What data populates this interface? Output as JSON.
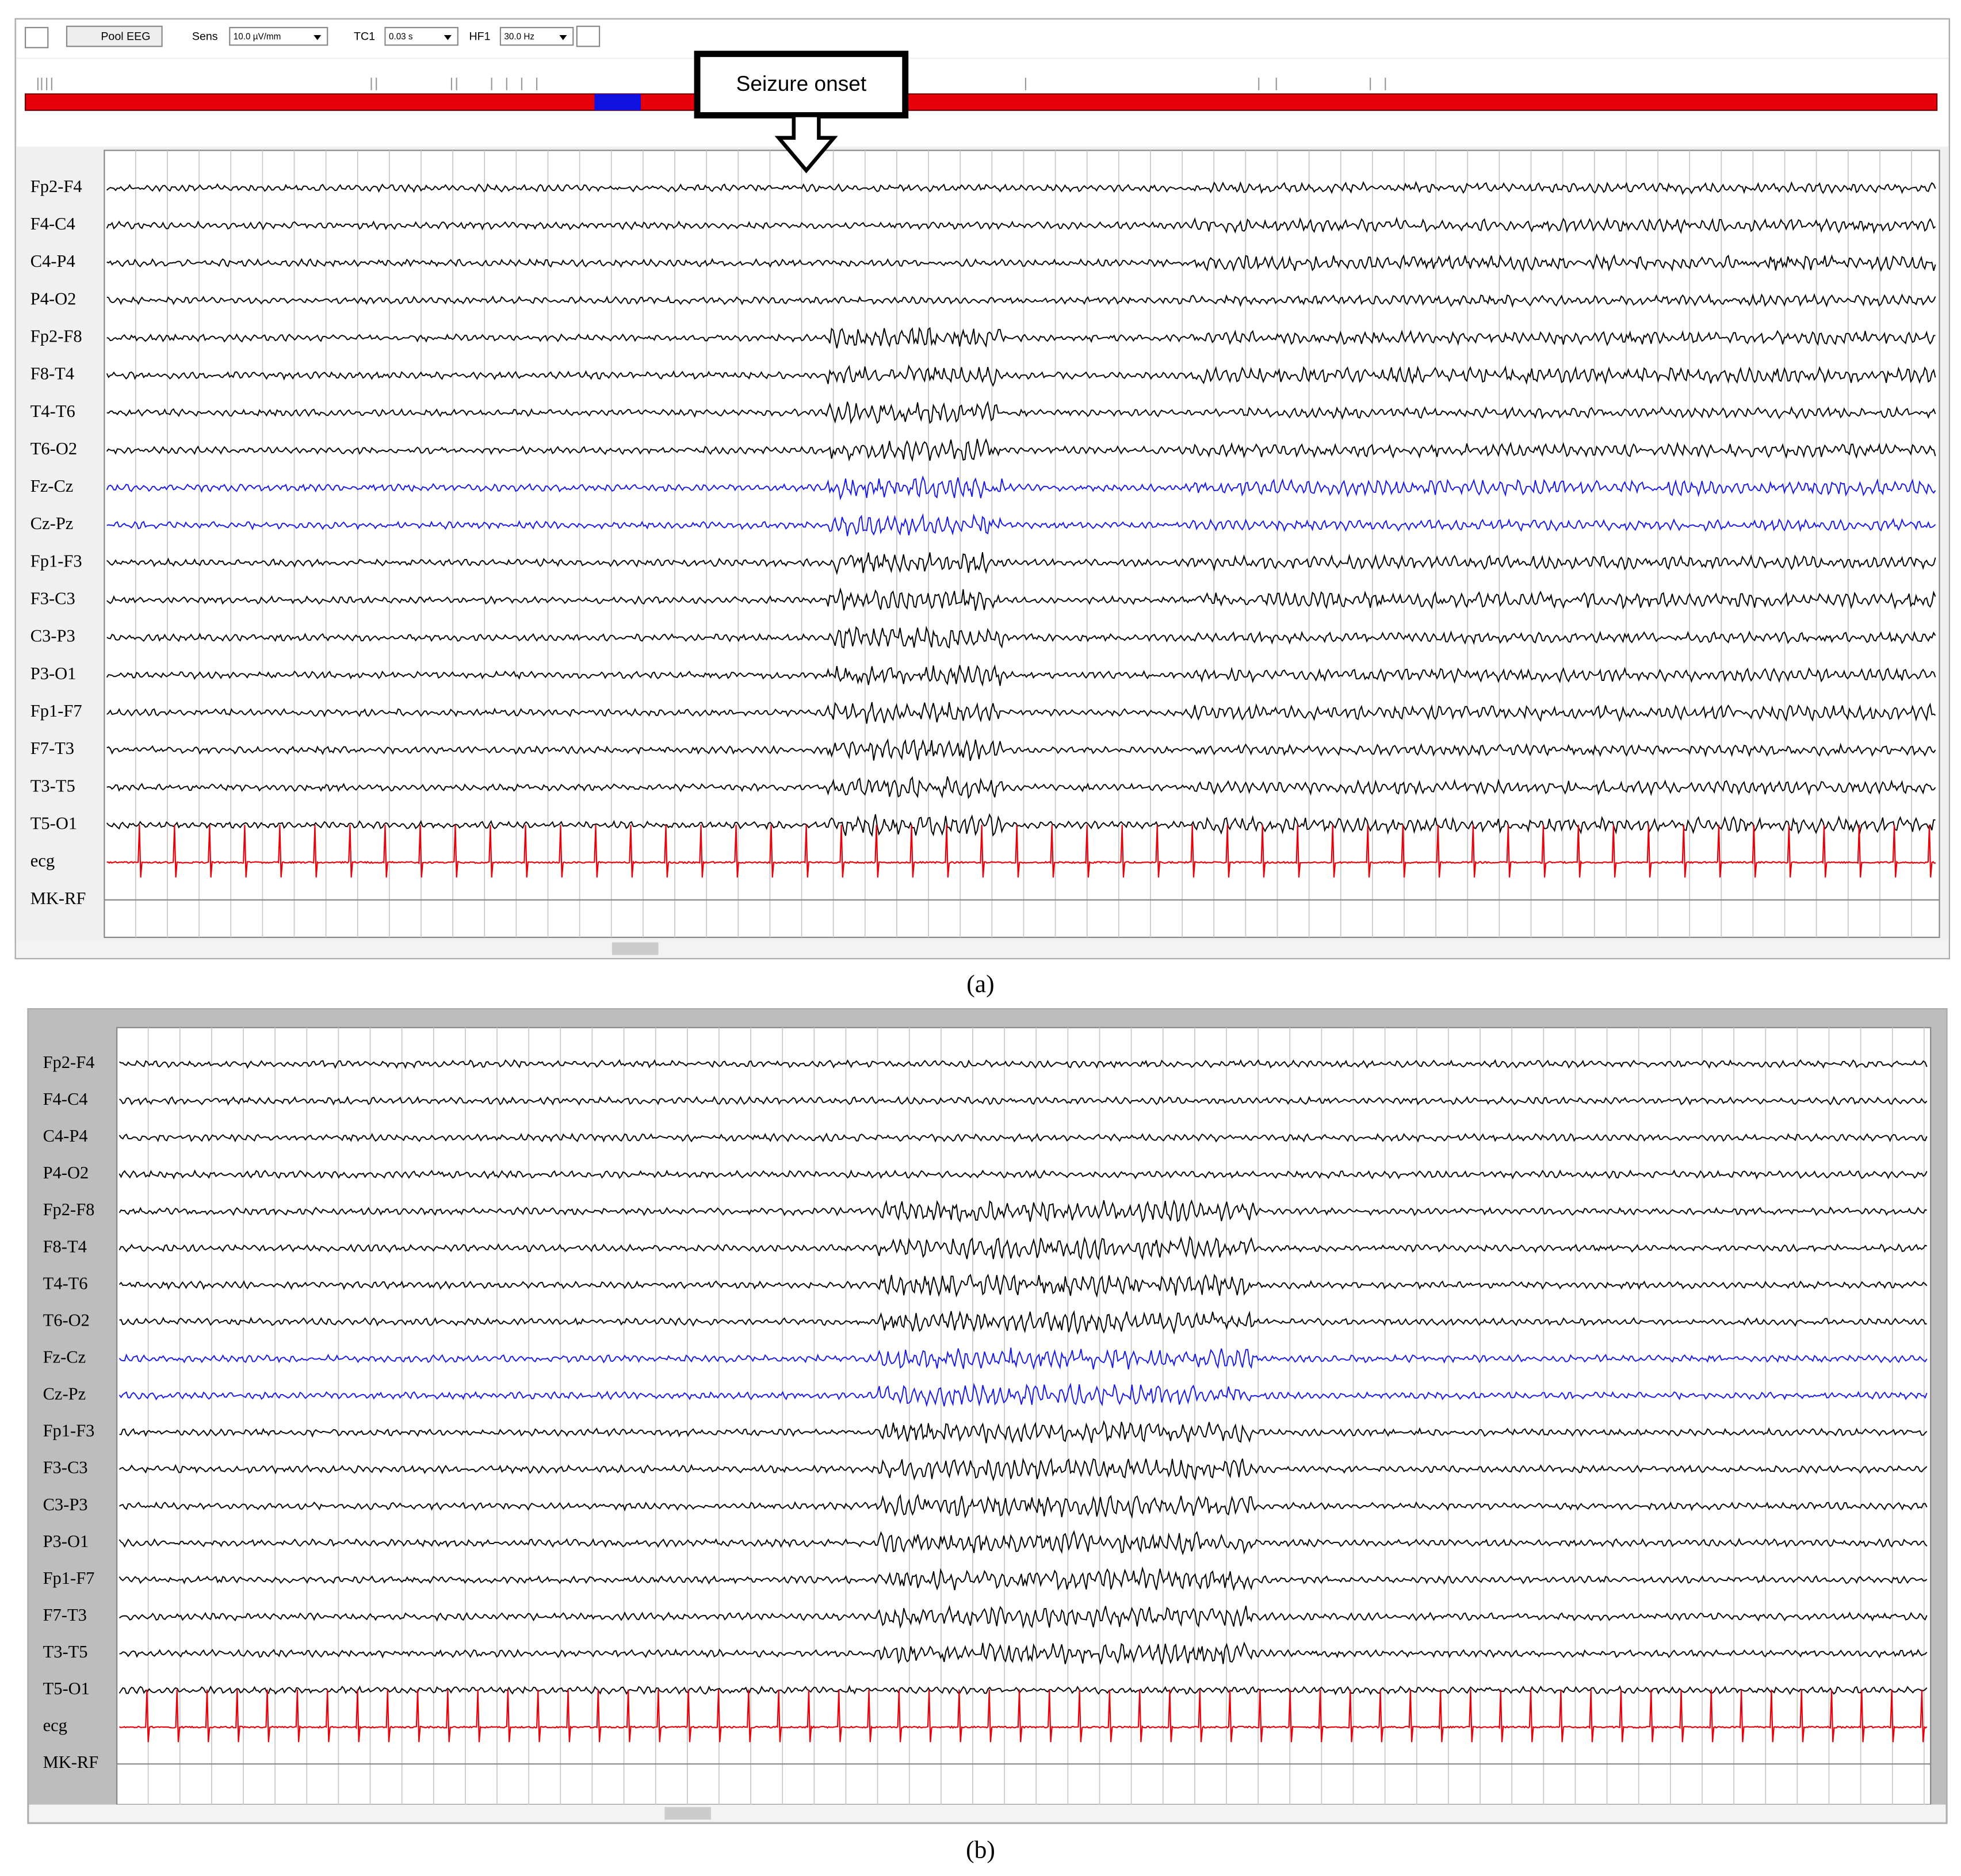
{
  "toolbar": {
    "pool_button": "Pool EEG",
    "sens_label": "Sens",
    "sens_value": "10.0 µV/mm",
    "tc_label": "TC1",
    "tc_value": "0.03 s",
    "hf_label": "HF1",
    "hf_value": "30.0 Hz"
  },
  "annotation": "Seizure onset",
  "channels": [
    "Fp2-F4",
    "F4-C4",
    "C4-P4",
    "P4-O2",
    "Fp2-F8",
    "F8-T4",
    "T4-T6",
    "T6-O2",
    "Fz-Cz",
    "Cz-Pz",
    "Fp1-F3",
    "F3-C3",
    "C3-P3",
    "P3-O1",
    "Fp1-F7",
    "F7-T3",
    "T3-T5",
    "T5-O1",
    "ecg",
    "MK-RF"
  ],
  "panels": [
    {
      "caption": "(a)"
    },
    {
      "caption": "(b)"
    }
  ]
}
